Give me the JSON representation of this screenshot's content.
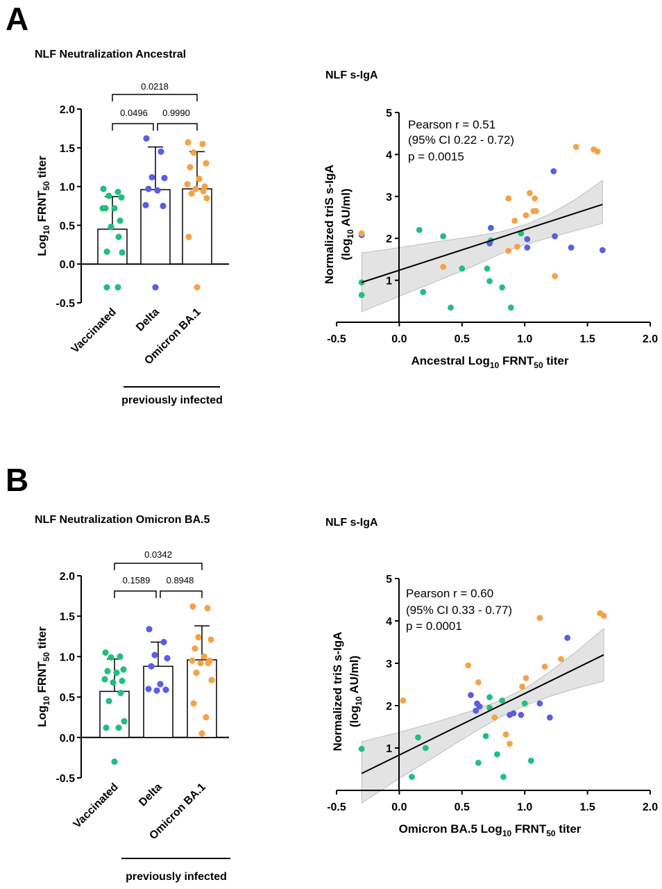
{
  "colors": {
    "vaccinated": "#21bf7e",
    "delta": "#5b5de6",
    "omicron": "#f6a248",
    "ci_band": "#d9d9d9",
    "axis": "#000000"
  },
  "panels": [
    {
      "letter": "A"
    },
    {
      "letter": "B"
    }
  ],
  "chart_data": [
    {
      "id": "A-bar",
      "type": "bar",
      "title": "NLF Neutralization Ancestral",
      "ylabel": "Log10 FRNT50 titer",
      "ylabel_parts": {
        "main": "Log",
        "sub1": "10",
        "mid": " FRNT",
        "sub2": "50",
        "end": " titer"
      },
      "ylim": [
        -0.5,
        2.0
      ],
      "yticks": [
        "-0.5",
        "0.0",
        "0.5",
        "1.0",
        "1.5",
        "2.0"
      ],
      "ytick_values": [
        -0.5,
        0,
        0.5,
        1.0,
        1.5,
        2.0
      ],
      "categories": [
        "Vaccinated",
        "Delta",
        "Omicron BA.1"
      ],
      "category_colors": [
        "vaccinated",
        "delta",
        "omicron"
      ],
      "means": [
        0.45,
        0.96,
        0.97
      ],
      "sd": [
        0.42,
        0.55,
        0.48
      ],
      "points": [
        [
          0.97,
          0.93,
          0.88,
          0.86,
          0.72,
          0.72,
          0.72,
          0.56,
          0.48,
          0.35,
          0.16,
          0.15,
          -0.3,
          -0.3
        ],
        [
          1.62,
          1.45,
          1.12,
          1.11,
          0.97,
          0.95,
          0.76,
          0.75,
          -0.3
        ],
        [
          1.57,
          1.55,
          1.44,
          1.3,
          1.25,
          1.1,
          1.03,
          1.0,
          0.97,
          0.94,
          0.91,
          0.85,
          0.35,
          -0.3
        ]
      ],
      "comparisons": [
        {
          "from": 0,
          "to": 1,
          "label": "0.0496"
        },
        {
          "from": 1,
          "to": 2,
          "label": "0.9990"
        },
        {
          "from": 0,
          "to": 2,
          "label": "0.0218"
        }
      ],
      "group_label": "previously infected"
    },
    {
      "id": "A-scatter",
      "type": "scatter",
      "title": "NLF s-IgA",
      "xlabel": "Ancestral Log10 FRNT50 titer",
      "xlabel_parts": {
        "main": "Ancestral Log",
        "sub1": "10",
        "mid": " FRNT",
        "sub2": "50",
        "end": " titer"
      },
      "ylabel_line1": "Normalized triS s-IgA",
      "ylabel_line2_parts": {
        "main": "(log",
        "sub1": "10",
        "end": " AU/ml)"
      },
      "xlim": [
        -0.5,
        2.0
      ],
      "ylim": [
        0,
        5
      ],
      "xticks": [
        "-0.5",
        "0.0",
        "0.5",
        "1.0",
        "1.5",
        "2.0"
      ],
      "xtick_values": [
        -0.5,
        0,
        0.5,
        1.0,
        1.5,
        2.0
      ],
      "yticks": [
        "1",
        "2",
        "3",
        "4",
        "5"
      ],
      "ytick_values": [
        1,
        2,
        3,
        4,
        5
      ],
      "stats": [
        "Pearson r = 0.51",
        "(95% CI 0.22 - 0.72)",
        "p = 0.0015"
      ],
      "fit": {
        "x": [
          -0.3,
          1.62
        ],
        "y": [
          0.95,
          2.81
        ]
      },
      "band_x": [
        -0.3,
        0.0,
        0.3,
        0.6,
        0.8,
        1.0,
        1.2,
        1.4,
        1.62
      ],
      "band_lo": [
        0.25,
        0.62,
        0.98,
        1.35,
        1.62,
        1.85,
        2.02,
        2.18,
        2.36
      ],
      "band_hi": [
        1.65,
        1.78,
        1.92,
        2.05,
        2.15,
        2.32,
        2.58,
        2.92,
        3.38
      ],
      "series": [
        {
          "name": "vaccinated",
          "x": [
            -0.3,
            -0.3,
            0.16,
            0.19,
            0.35,
            0.41,
            0.5,
            0.7,
            0.72,
            0.73,
            0.82,
            0.89,
            0.97
          ],
          "y": [
            0.95,
            0.65,
            2.2,
            0.72,
            2.05,
            0.35,
            1.28,
            1.28,
            0.98,
            1.95,
            0.83,
            0.35,
            2.12
          ]
        },
        {
          "name": "delta",
          "x": [
            -0.3,
            0.72,
            0.73,
            1.02,
            1.02,
            1.23,
            1.24,
            1.37,
            1.62
          ],
          "y": [
            2.08,
            1.88,
            2.25,
            1.98,
            1.78,
            3.6,
            2.05,
            1.78,
            1.72
          ]
        },
        {
          "name": "omicron",
          "x": [
            -0.3,
            0.35,
            0.87,
            0.87,
            0.92,
            0.94,
            1.01,
            1.04,
            1.07,
            1.08,
            1.09,
            1.24,
            1.41,
            1.55,
            1.58
          ],
          "y": [
            2.12,
            1.32,
            1.7,
            2.95,
            2.42,
            1.8,
            2.55,
            3.08,
            2.65,
            2.95,
            2.65,
            1.1,
            4.18,
            4.12,
            4.07
          ]
        }
      ]
    },
    {
      "id": "B-bar",
      "type": "bar",
      "title": "NLF Neutralization Omicron BA.5",
      "ylabel": "Log10 FRNT50 titer",
      "ylabel_parts": {
        "main": "Log",
        "sub1": "10",
        "mid": " FRNT",
        "sub2": "50",
        "end": " titer"
      },
      "ylim": [
        -0.5,
        2.0
      ],
      "yticks": [
        "-0.5",
        "0.0",
        "0.5",
        "1.0",
        "1.5",
        "2.0"
      ],
      "ytick_values": [
        -0.5,
        0,
        0.5,
        1.0,
        1.5,
        2.0
      ],
      "categories": [
        "Vaccinated",
        "Delta",
        "Omicron BA.1"
      ],
      "category_colors": [
        "vaccinated",
        "delta",
        "omicron"
      ],
      "means": [
        0.57,
        0.88,
        0.96
      ],
      "sd": [
        0.4,
        0.3,
        0.42
      ],
      "points": [
        [
          1.05,
          1.0,
          0.99,
          0.84,
          0.82,
          0.8,
          0.72,
          0.7,
          0.68,
          0.55,
          0.45,
          0.2,
          0.12,
          0.12,
          -0.3
        ],
        [
          1.34,
          1.18,
          1.02,
          0.98,
          0.88,
          0.66,
          0.6,
          0.59,
          0.58
        ],
        [
          1.62,
          1.6,
          1.24,
          1.21,
          1.1,
          1.0,
          0.95,
          0.95,
          0.92,
          0.92,
          0.8,
          0.71,
          0.42,
          0.25,
          0.05
        ]
      ],
      "comparisons": [
        {
          "from": 0,
          "to": 1,
          "label": "0.1589"
        },
        {
          "from": 1,
          "to": 2,
          "label": "0.8948"
        },
        {
          "from": 0,
          "to": 2,
          "label": "0.0342"
        }
      ],
      "group_label": "previously infected"
    },
    {
      "id": "B-scatter",
      "type": "scatter",
      "title": "NLF s-IgA",
      "xlabel": "Omicron BA.5 Log10 FRNT50 titer",
      "xlabel_parts": {
        "main": "Omicron BA.5 Log",
        "sub1": "10",
        "mid": " FRNT",
        "sub2": "50",
        "end": " titer"
      },
      "ylabel_line1": "Normalized triS s-IgA",
      "ylabel_line2_parts": {
        "main": "(log",
        "sub1": "10",
        "end": " AU/ml)"
      },
      "xlim": [
        -0.5,
        2.0
      ],
      "ylim": [
        0,
        5
      ],
      "xticks": [
        "-0.5",
        "0.0",
        "0.5",
        "1.0",
        "1.5",
        "2.0"
      ],
      "xtick_values": [
        -0.5,
        0,
        0.5,
        1.0,
        1.5,
        2.0
      ],
      "yticks": [
        "1",
        "2",
        "3",
        "4",
        "5"
      ],
      "ytick_values": [
        1,
        2,
        3,
        4,
        5
      ],
      "stats": [
        "Pearson r = 0.60",
        "(95% CI 0.33 - 0.77)",
        "p = 0.0001"
      ],
      "fit": {
        "x": [
          -0.3,
          1.63
        ],
        "y": [
          0.4,
          3.2
        ]
      },
      "band_x": [
        -0.3,
        0.0,
        0.3,
        0.6,
        0.8,
        1.0,
        1.2,
        1.4,
        1.63
      ],
      "band_lo": [
        -0.3,
        0.28,
        0.83,
        1.38,
        1.72,
        2.0,
        2.22,
        2.4,
        2.58
      ],
      "band_hi": [
        1.15,
        1.37,
        1.62,
        1.9,
        2.12,
        2.4,
        2.8,
        3.25,
        3.82
      ],
      "series": [
        {
          "name": "vaccinated",
          "x": [
            -0.3,
            0.1,
            0.15,
            0.21,
            0.63,
            0.69,
            0.72,
            0.72,
            0.78,
            0.82,
            0.83,
            1.0,
            1.05
          ],
          "y": [
            0.98,
            0.32,
            1.25,
            1.0,
            0.65,
            1.28,
            2.2,
            1.95,
            0.85,
            2.12,
            0.32,
            2.05,
            0.7
          ]
        },
        {
          "name": "delta",
          "x": [
            0.57,
            0.61,
            0.62,
            0.64,
            0.88,
            0.91,
            0.97,
            1.12,
            1.2,
            1.34
          ],
          "y": [
            2.25,
            1.88,
            2.05,
            1.98,
            1.78,
            1.82,
            1.78,
            2.05,
            1.72,
            3.6
          ]
        },
        {
          "name": "omicron",
          "x": [
            0.03,
            0.55,
            0.63,
            0.76,
            0.85,
            0.88,
            0.98,
            1.01,
            1.12,
            1.16,
            1.29,
            1.6,
            1.63
          ],
          "y": [
            2.12,
            2.95,
            2.55,
            1.72,
            1.32,
            1.1,
            2.45,
            2.65,
            4.07,
            2.92,
            3.1,
            4.18,
            4.12
          ]
        }
      ]
    }
  ]
}
